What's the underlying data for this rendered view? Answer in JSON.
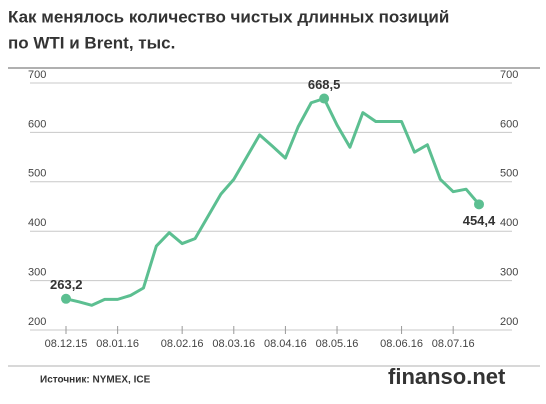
{
  "chart_data": {
    "type": "line",
    "title": [
      "Как менялось количество чистых длинных позиций",
      "по WTI и Brent, тыс."
    ],
    "source": "Источник: NYMEX, ICE",
    "watermark": "finanso.net",
    "categories": [
      "08.12.15",
      null,
      null,
      null,
      "08.01.16",
      null,
      null,
      null,
      null,
      "08.02.16",
      null,
      null,
      null,
      "08.03.16",
      null,
      null,
      null,
      "08.04.16",
      null,
      null,
      null,
      "08.05.16",
      null,
      null,
      null,
      null,
      "08.06.16",
      null,
      null,
      null,
      "08.07.16",
      null,
      null
    ],
    "values": [
      263.2,
      257,
      250,
      262,
      262,
      270,
      285,
      370,
      397,
      375,
      385,
      430,
      475,
      505,
      550,
      595,
      572,
      548,
      612,
      660,
      668.5,
      615,
      570,
      640,
      622,
      622,
      622,
      560,
      575,
      505,
      480,
      485,
      454.4
    ],
    "value_labels": [
      "263,2",
      null,
      null,
      null,
      null,
      null,
      null,
      null,
      null,
      null,
      null,
      null,
      null,
      null,
      null,
      null,
      null,
      null,
      null,
      null,
      "668,5",
      null,
      null,
      null,
      null,
      null,
      null,
      null,
      null,
      null,
      null,
      null,
      "454,4"
    ],
    "color": "#5cbf91",
    "ylim": [
      200,
      700
    ],
    "yticks": [
      200,
      300,
      400,
      500,
      600,
      700
    ],
    "grid": true
  }
}
